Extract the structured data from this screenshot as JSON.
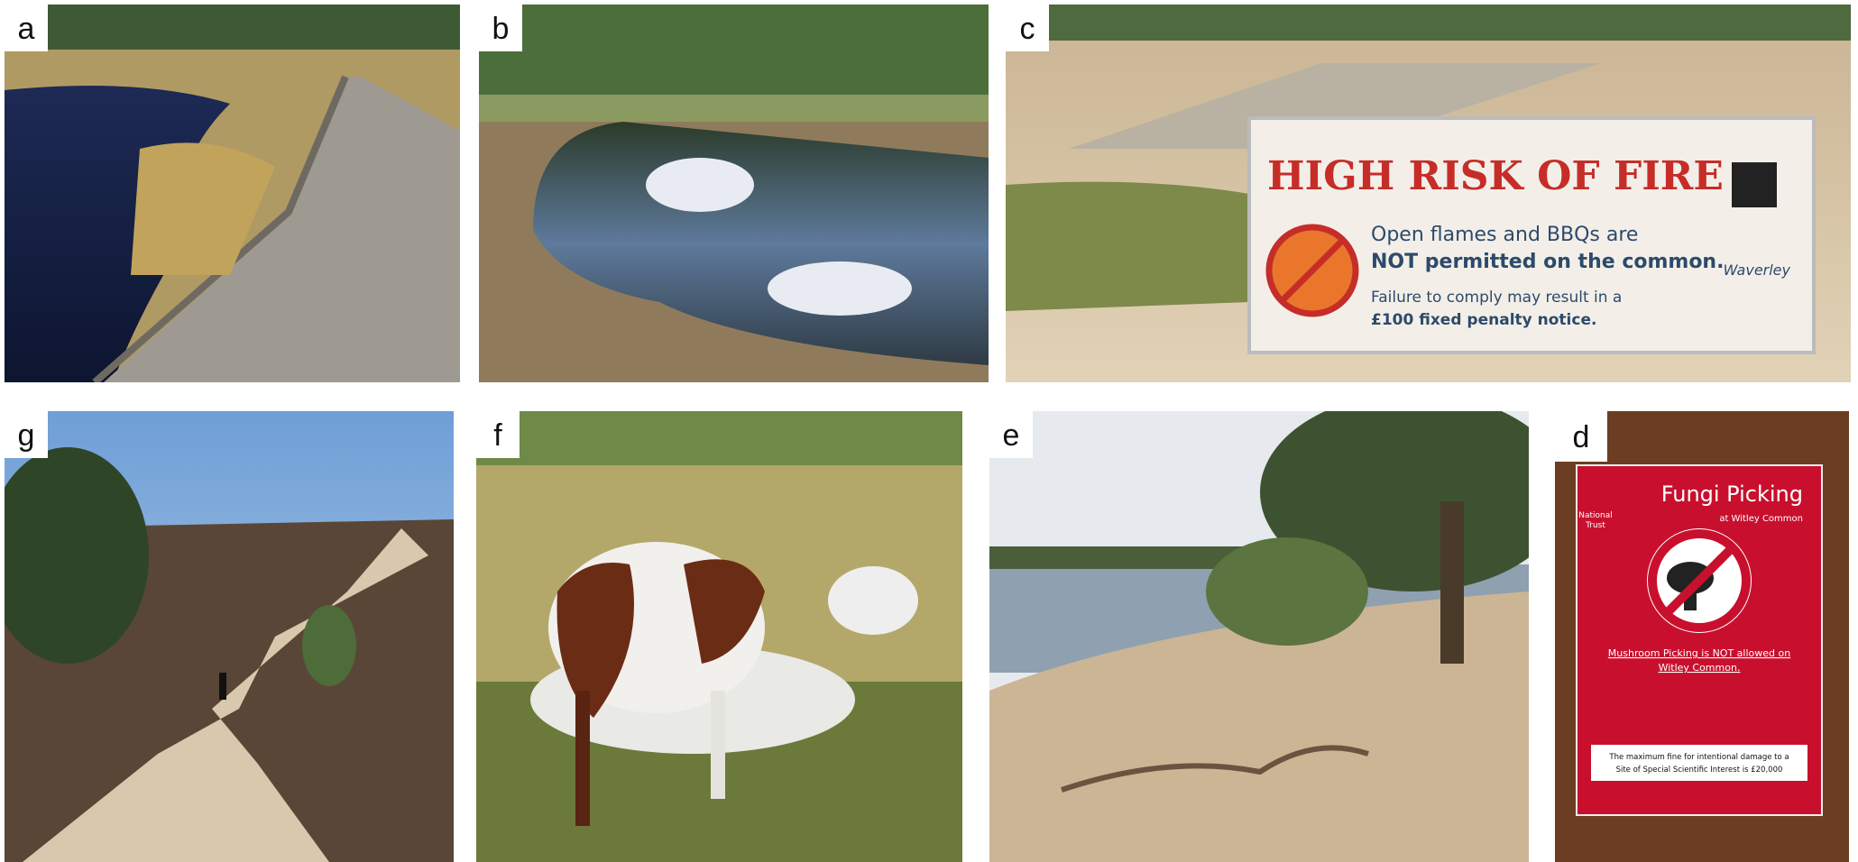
{
  "panels": [
    {
      "label": "a"
    },
    {
      "label": "b"
    },
    {
      "label": "c",
      "sign": {
        "title": "HIGH RISK OF FIRE",
        "text": [
          "Open flames and BBQs are",
          "NOT permitted on the common."
        ],
        "notice": [
          "Failure to comply may result in a",
          "£100 fixed penalty notice."
        ],
        "brand": "Waverley"
      }
    },
    {
      "label": "g"
    },
    {
      "label": "f"
    },
    {
      "label": "e"
    },
    {
      "label": "d",
      "sign": {
        "logo": [
          "National",
          "Trust"
        ],
        "title": "Fungi Picking",
        "subtitle": "at Witley Common",
        "warning": [
          "Mushroom Picking is NOT allowed on",
          "Witley Common."
        ],
        "fine": [
          "The maximum fine for intentional damage to a",
          "Site of Special Scientific Interest is £20,000"
        ]
      }
    }
  ]
}
